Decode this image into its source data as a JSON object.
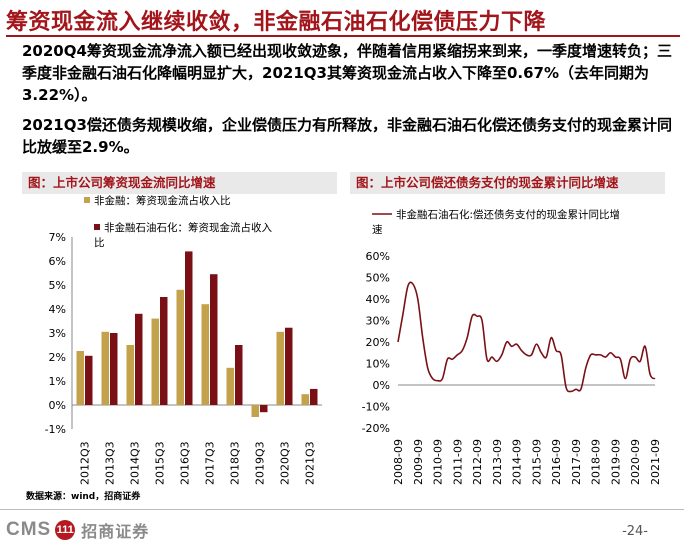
{
  "slide": {
    "title": "筹资现金流入继续收敛，非金融石油石化偿债压力下降",
    "paragraphs": [
      "2020Q4筹资现金流净流入额已经出现收敛迹象，伴随着信用紧缩拐来到来，一季度增速转负；三季度非金融石油石化降幅明显扩大，2021Q3其筹资现金流占收入下降至0.67%（去年同期为3.22%）。",
      "2021Q3偿还债务规模收缩，企业偿债压力有所释放，非金融石油石化偿还债务支付的现金累计同比放缓至2.9%。"
    ],
    "source": "数据来源：wind，招商证券",
    "logo_text": "CMS",
    "logo_mark": "111",
    "logo_name": "招商证券",
    "page_number": "-24-"
  },
  "chart_left_title": "图：上市公司筹资现金流同比增速",
  "chart_right_title": "图：上市公司偿还债务支付的现金累计同比增速",
  "colors": {
    "accent": "#a2151b",
    "series_nonfin": "#c3a24b",
    "series_nonfin_ex": "#7a1016",
    "line": "#7a1016"
  },
  "chart_data": [
    {
      "type": "bar",
      "categories": [
        "2012Q3",
        "2013Q3",
        "2014Q3",
        "2015Q3",
        "2016Q3",
        "2017Q3",
        "2018Q3",
        "2019Q3",
        "2020Q3",
        "2021Q3"
      ],
      "series": [
        {
          "name": "非金融：筹资现金流占收入比",
          "values": [
            2.25,
            3.05,
            2.5,
            3.6,
            4.8,
            4.2,
            1.55,
            -0.5,
            3.05,
            0.45
          ]
        },
        {
          "name": "非金融石油石化：筹资现金流占收入比",
          "values": [
            2.05,
            3.0,
            3.8,
            4.5,
            6.4,
            5.45,
            2.5,
            -0.3,
            3.22,
            0.67
          ]
        }
      ],
      "ylim": [
        -1,
        7
      ],
      "yticks": [
        "-1%",
        "0%",
        "1%",
        "2%",
        "3%",
        "4%",
        "5%",
        "6%",
        "7%"
      ],
      "unit": "%"
    },
    {
      "type": "line",
      "series": [
        {
          "name": "非金融石油石化:偿还债务支付的现金累计同比增速"
        }
      ],
      "x_labels": [
        "2008-09",
        "2009-09",
        "2010-09",
        "2011-09",
        "2012-09",
        "2013-09",
        "2014-09",
        "2015-09",
        "2016-09",
        "2017-09",
        "2018-09",
        "2019-09",
        "2020-09",
        "2021-09"
      ],
      "points": [
        [
          "2008-09",
          20
        ],
        [
          "2008-12",
          33
        ],
        [
          "2009-03",
          46
        ],
        [
          "2009-06",
          47
        ],
        [
          "2009-09",
          40
        ],
        [
          "2009-12",
          22
        ],
        [
          "2010-03",
          8
        ],
        [
          "2010-06",
          3
        ],
        [
          "2010-09",
          2
        ],
        [
          "2010-12",
          3
        ],
        [
          "2011-03",
          12
        ],
        [
          "2011-06",
          12
        ],
        [
          "2011-09",
          14
        ],
        [
          "2011-12",
          16
        ],
        [
          "2012-03",
          22
        ],
        [
          "2012-06",
          32
        ],
        [
          "2012-09",
          32
        ],
        [
          "2012-12",
          30
        ],
        [
          "2013-03",
          12
        ],
        [
          "2013-06",
          13
        ],
        [
          "2013-09",
          11
        ],
        [
          "2013-12",
          14
        ],
        [
          "2014-03",
          20
        ],
        [
          "2014-06",
          18
        ],
        [
          "2014-09",
          19
        ],
        [
          "2014-12",
          16
        ],
        [
          "2015-03",
          14
        ],
        [
          "2015-06",
          14
        ],
        [
          "2015-09",
          19
        ],
        [
          "2015-12",
          15
        ],
        [
          "2016-03",
          13
        ],
        [
          "2016-06",
          22
        ],
        [
          "2016-09",
          16
        ],
        [
          "2016-12",
          14
        ],
        [
          "2017-03",
          -1
        ],
        [
          "2017-06",
          -3
        ],
        [
          "2017-09",
          -2
        ],
        [
          "2017-12",
          -2
        ],
        [
          "2018-03",
          8
        ],
        [
          "2018-06",
          14
        ],
        [
          "2018-09",
          14
        ],
        [
          "2018-12",
          14
        ],
        [
          "2019-03",
          13
        ],
        [
          "2019-06",
          15
        ],
        [
          "2019-09",
          13
        ],
        [
          "2019-12",
          12
        ],
        [
          "2020-03",
          3
        ],
        [
          "2020-06",
          12
        ],
        [
          "2020-09",
          13
        ],
        [
          "2020-12",
          11
        ],
        [
          "2021-03",
          18
        ],
        [
          "2021-06",
          5
        ],
        [
          "2021-09",
          2.9
        ]
      ],
      "ylim": [
        -20,
        60
      ],
      "yticks": [
        "-20%",
        "-10%",
        "0%",
        "10%",
        "20%",
        "30%",
        "40%",
        "50%",
        "60%"
      ],
      "unit": "%"
    }
  ]
}
